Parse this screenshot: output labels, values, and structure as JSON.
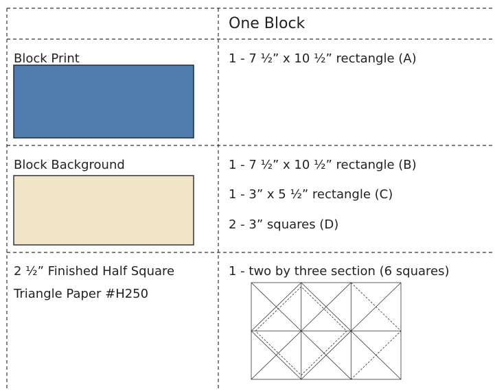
{
  "table": {
    "column_header": "One Block",
    "rows": [
      {
        "label": [
          "Block Print"
        ],
        "cuts": [
          "1 - 7 ½” x 10 ½” rectangle (A)"
        ]
      },
      {
        "label": [
          "Block Background"
        ],
        "cuts": [
          "1 - 7 ½” x 10 ½” rectangle (B)",
          "1 - 3” x 5 ½” rectangle (C)",
          "2 - 3”  squares (D)"
        ]
      },
      {
        "label": [
          "2 ½” Finished Half Square",
          "Triangle Paper #H250"
        ],
        "cuts": [
          "1 - two by three section (6 squares)"
        ]
      }
    ]
  }
}
